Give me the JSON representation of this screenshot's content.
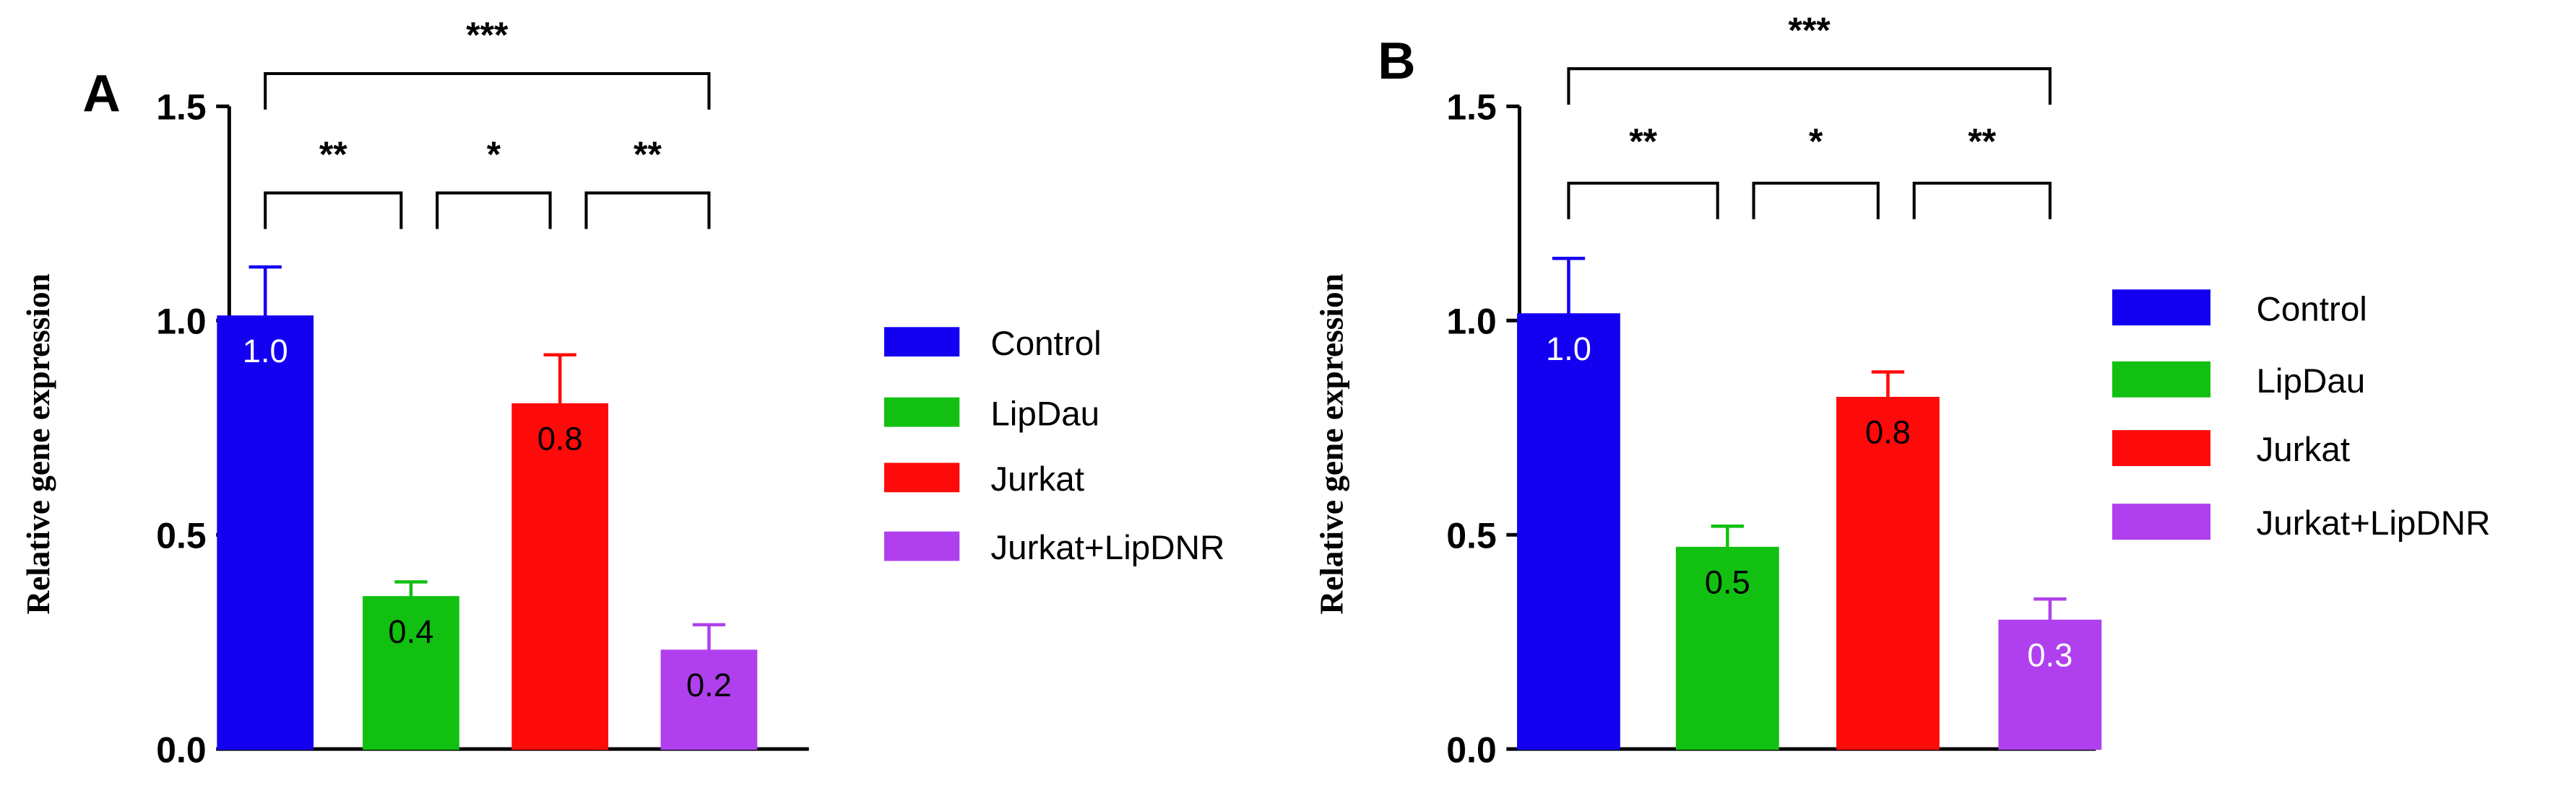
{
  "panels": [
    {
      "letter": "A",
      "type": "bar",
      "ylabel": "Relative gene expression",
      "ylim": [
        0,
        1.5
      ],
      "yticks": [
        "0.0",
        "0.5",
        "1.0",
        "1.5"
      ],
      "ytick_values": [
        0,
        0.5,
        1.0,
        1.5
      ],
      "categories": [
        "Control",
        "LipDau",
        "Jurkat",
        "Jurkat+LipDNR"
      ],
      "values": [
        1.01,
        0.355,
        0.805,
        0.23
      ],
      "errors": [
        0.115,
        0.035,
        0.115,
        0.06
      ],
      "data_labels": [
        "1.0",
        "0.4",
        "0.8",
        "0.2"
      ],
      "significance": [
        {
          "from": 0,
          "to": 3,
          "label": "***"
        },
        {
          "from": 0,
          "to": 1,
          "label": "**"
        },
        {
          "from": 1,
          "to": 2,
          "label": "*"
        },
        {
          "from": 2,
          "to": 3,
          "label": "**"
        }
      ],
      "legend": [
        "Control",
        "LipDau",
        "Jurkat",
        "Jurkat+LipDNR"
      ]
    },
    {
      "letter": "B",
      "type": "bar",
      "ylabel": "Relative gene expression",
      "ylim": [
        0,
        1.5
      ],
      "yticks": [
        "0.0",
        "0.5",
        "1.0",
        "1.5"
      ],
      "ytick_values": [
        0,
        0.5,
        1.0,
        1.5
      ],
      "categories": [
        "Control",
        "LipDau",
        "Jurkat",
        "Jurkat+LipDNR"
      ],
      "values": [
        1.015,
        0.47,
        0.82,
        0.3
      ],
      "errors": [
        0.13,
        0.05,
        0.06,
        0.05
      ],
      "data_labels": [
        "1.0",
        "0.5",
        "0.8",
        "0.3"
      ],
      "significance": [
        {
          "from": 0,
          "to": 3,
          "label": "***"
        },
        {
          "from": 0,
          "to": 1,
          "label": "**"
        },
        {
          "from": 1,
          "to": 2,
          "label": "*"
        },
        {
          "from": 2,
          "to": 3,
          "label": "**"
        }
      ],
      "legend": [
        "Control",
        "LipDau",
        "Jurkat",
        "Jurkat+LipDNR"
      ]
    }
  ],
  "series_colors": {
    "Control": "#1400f0",
    "LipDau": "#12c012",
    "Jurkat": "#ff0a0a",
    "Jurkat+LipDNR": "#b040ee"
  },
  "chart_data": [
    {
      "type": "bar",
      "title": "A",
      "xlabel": "",
      "ylabel": "Relative gene expression",
      "ylim": [
        0,
        1.5
      ],
      "categories": [
        "Control",
        "LipDau",
        "Jurkat",
        "Jurkat+LipDNR"
      ],
      "values": [
        1.01,
        0.355,
        0.805,
        0.23
      ],
      "errors": [
        0.115,
        0.035,
        0.115,
        0.06
      ],
      "data_labels": [
        "1.0",
        "0.4",
        "0.8",
        "0.2"
      ]
    },
    {
      "type": "bar",
      "title": "B",
      "xlabel": "",
      "ylabel": "Relative gene expression",
      "ylim": [
        0,
        1.5
      ],
      "categories": [
        "Control",
        "LipDau",
        "Jurkat",
        "Jurkat+LipDNR"
      ],
      "values": [
        1.015,
        0.47,
        0.82,
        0.3
      ],
      "errors": [
        0.13,
        0.05,
        0.06,
        0.05
      ],
      "data_labels": [
        "1.0",
        "0.5",
        "0.8",
        "0.3"
      ]
    }
  ]
}
